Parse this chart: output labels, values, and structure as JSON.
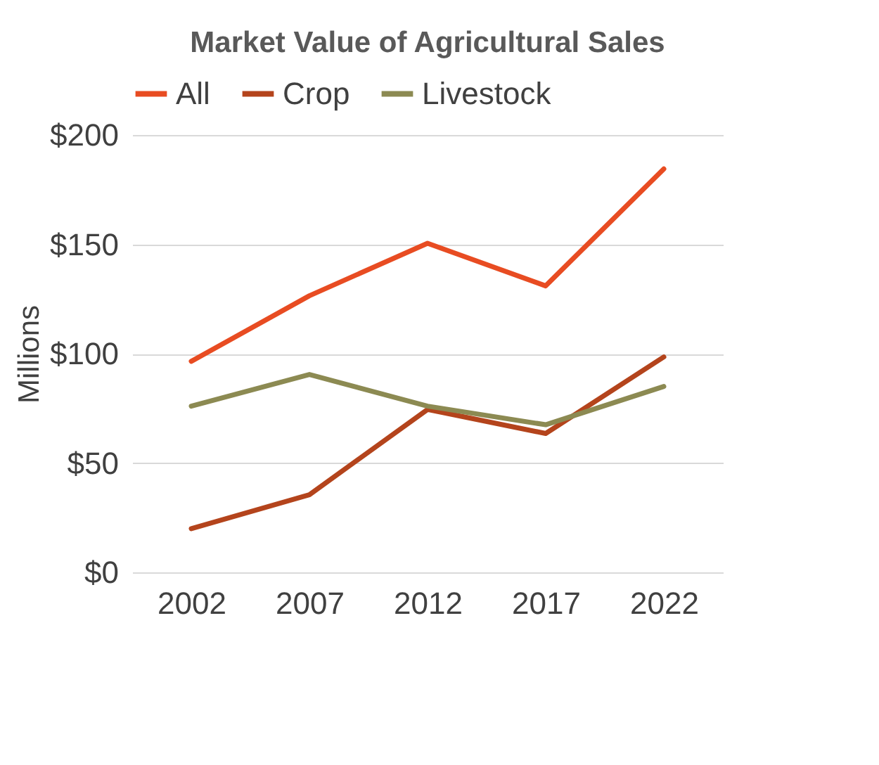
{
  "chart_data": {
    "type": "line",
    "title": "Market Value of Agricultural Sales",
    "ylabel": "Millions",
    "categories": [
      "2002",
      "2007",
      "2012",
      "2017",
      "2022"
    ],
    "series": [
      {
        "name": "All",
        "color": "#e84c22",
        "values": [
          96.5,
          126.5,
          150.5,
          131,
          184.5
        ]
      },
      {
        "name": "Crop",
        "color": "#b4441c",
        "values": [
          20,
          35.5,
          74.5,
          63.5,
          98.5
        ]
      },
      {
        "name": "Livestock",
        "color": "#8c8a52",
        "values": [
          76,
          90.5,
          76,
          67.5,
          85
        ]
      }
    ],
    "ylim": [
      0,
      200
    ],
    "yticks": [
      {
        "value": 0,
        "label": "$0"
      },
      {
        "value": 50,
        "label": "$50"
      },
      {
        "value": 100,
        "label": "$100"
      },
      {
        "value": 150,
        "label": "$150"
      },
      {
        "value": 200,
        "label": "$200"
      }
    ],
    "grid": "y",
    "legend": "top",
    "marker": "none",
    "line_style": "solid"
  }
}
